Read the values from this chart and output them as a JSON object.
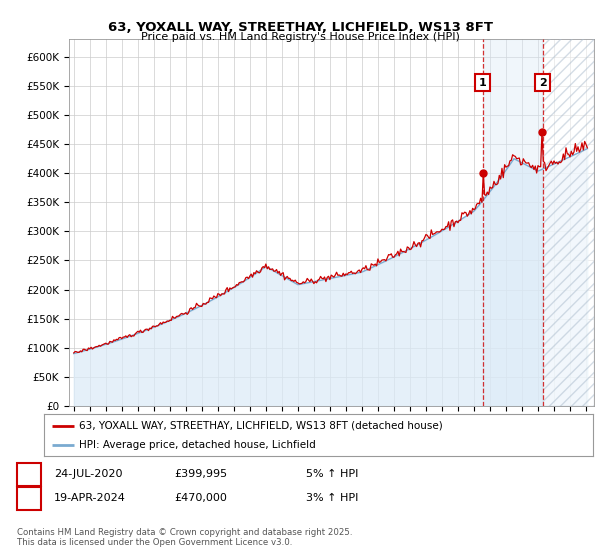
{
  "title": "63, YOXALL WAY, STREETHAY, LICHFIELD, WS13 8FT",
  "subtitle": "Price paid vs. HM Land Registry's House Price Index (HPI)",
  "xlim_start": 1994.7,
  "xlim_end": 2027.5,
  "ylim_min": 0,
  "ylim_max": 630000,
  "yticks": [
    0,
    50000,
    100000,
    150000,
    200000,
    250000,
    300000,
    350000,
    400000,
    450000,
    500000,
    550000,
    600000
  ],
  "ytick_labels": [
    "£0",
    "£50K",
    "£100K",
    "£150K",
    "£200K",
    "£250K",
    "£300K",
    "£350K",
    "£400K",
    "£450K",
    "£500K",
    "£550K",
    "£600K"
  ],
  "purchase1_date": 2020.56,
  "purchase1_price": 399995,
  "purchase1_label": "1",
  "purchase2_date": 2024.29,
  "purchase2_price": 470000,
  "purchase2_label": "2",
  "legend_line1": "63, YOXALL WAY, STREETHAY, LICHFIELD, WS13 8FT (detached house)",
  "legend_line2": "HPI: Average price, detached house, Lichfield",
  "footnote": "Contains HM Land Registry data © Crown copyright and database right 2025.\nThis data is licensed under the Open Government Licence v3.0.",
  "line_color_red": "#cc0000",
  "line_color_blue": "#7aaad0",
  "fill_color_blue": "#daeaf7",
  "grid_color": "#cccccc",
  "background_color": "#ffffff",
  "hpi_base": 90000,
  "hpi_seed": 42
}
